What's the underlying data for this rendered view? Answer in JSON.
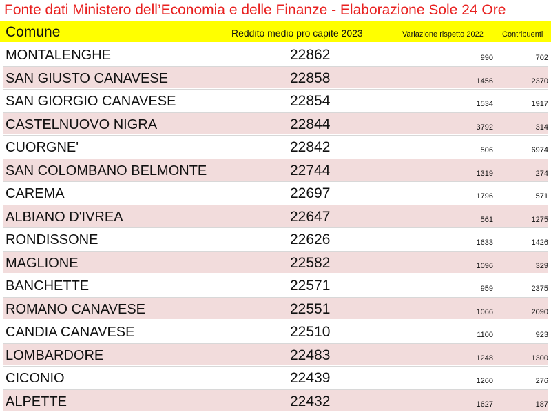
{
  "title": "Fonte dati Ministero dell’Economia e delle Finanze - Elaborazione Sole 24 Ore",
  "colors": {
    "title_text": "#e8201f",
    "header_bg": "#ffff00",
    "row_alt_bg": "#f2dcdc"
  },
  "header": {
    "comune": "Comune",
    "reddito": "Reddito medio pro capite 2023",
    "variazione": "Variazione rispetto 2022",
    "contribuenti": "Contribuenti"
  },
  "rows": [
    {
      "comune": "MONTALENGHE",
      "reddito": "22862",
      "variazione": "990",
      "contribuenti": "702"
    },
    {
      "comune": "SAN GIUSTO CANAVESE",
      "reddito": "22858",
      "variazione": "1456",
      "contribuenti": "2370"
    },
    {
      "comune": "SAN GIORGIO CANAVESE",
      "reddito": "22854",
      "variazione": "1534",
      "contribuenti": "1917"
    },
    {
      "comune": "CASTELNUOVO NIGRA",
      "reddito": "22844",
      "variazione": "3792",
      "contribuenti": "314"
    },
    {
      "comune": "CUORGNE'",
      "reddito": "22842",
      "variazione": "506",
      "contribuenti": "6974"
    },
    {
      "comune": "SAN COLOMBANO BELMONTE",
      "reddito": "22744",
      "variazione": "1319",
      "contribuenti": "274"
    },
    {
      "comune": "CAREMA",
      "reddito": "22697",
      "variazione": "1796",
      "contribuenti": "571"
    },
    {
      "comune": "ALBIANO D'IVREA",
      "reddito": "22647",
      "variazione": "561",
      "contribuenti": "1275"
    },
    {
      "comune": "RONDISSONE",
      "reddito": "22626",
      "variazione": "1633",
      "contribuenti": "1426"
    },
    {
      "comune": "MAGLIONE",
      "reddito": "22582",
      "variazione": "1096",
      "contribuenti": "329"
    },
    {
      "comune": "BANCHETTE",
      "reddito": "22571",
      "variazione": "959",
      "contribuenti": "2375"
    },
    {
      "comune": "ROMANO CANAVESE",
      "reddito": "22551",
      "variazione": "1066",
      "contribuenti": "2090"
    },
    {
      "comune": "CANDIA CANAVESE",
      "reddito": "22510",
      "variazione": "1100",
      "contribuenti": "923"
    },
    {
      "comune": "LOMBARDORE",
      "reddito": "22483",
      "variazione": "1248",
      "contribuenti": "1300"
    },
    {
      "comune": "CICONIO",
      "reddito": "22439",
      "variazione": "1260",
      "contribuenti": "276"
    },
    {
      "comune": "ALPETTE",
      "reddito": "22432",
      "variazione": "1627",
      "contribuenti": "187"
    }
  ]
}
